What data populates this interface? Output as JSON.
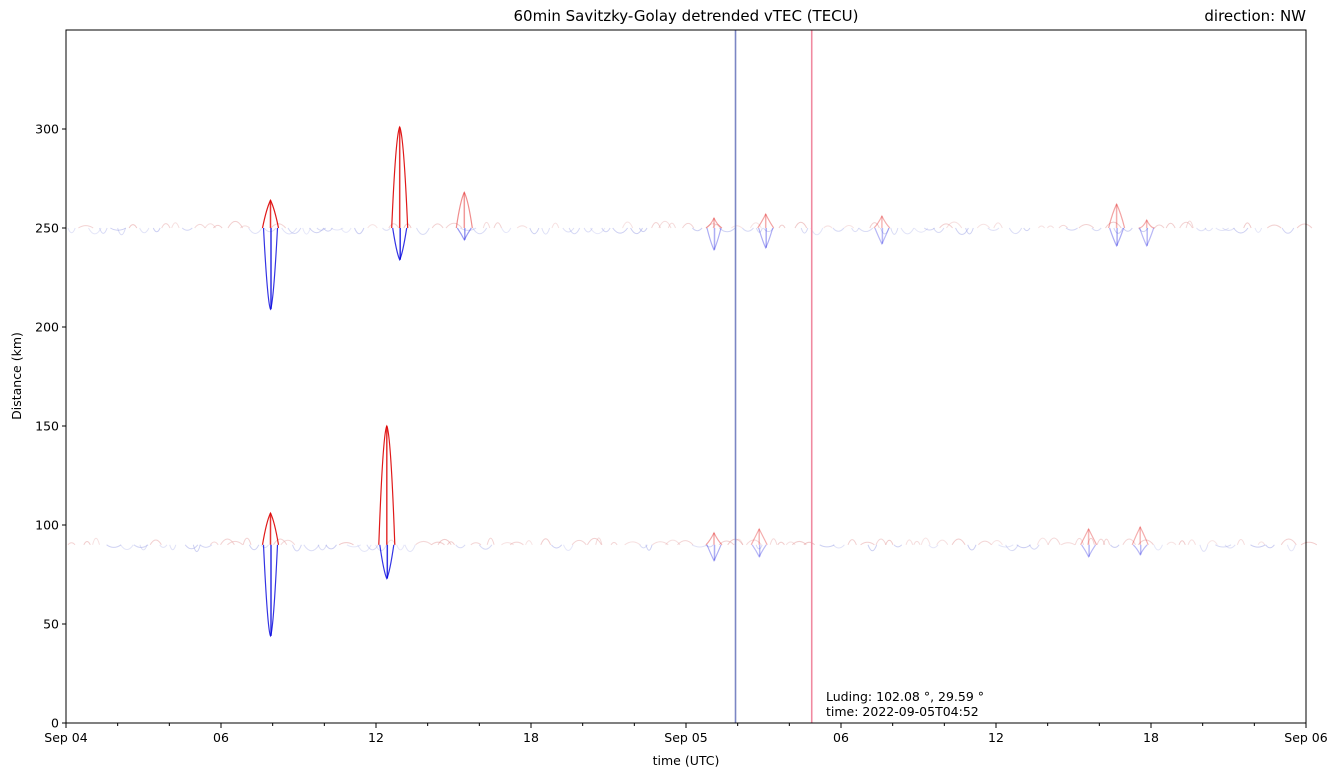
{
  "chart_data": {
    "type": "heatmap",
    "title": "60min Savitzky-Golay detrended vTEC (TECU)",
    "direction_label": "direction: NW",
    "xlabel": "time (UTC)",
    "ylabel": "Distance (km)",
    "x_range": [
      "2022-09-04T00:00",
      "2022-09-06T00:00"
    ],
    "ylim": [
      0,
      350
    ],
    "x_ticks": [
      {
        "t": "2022-09-04T00:00",
        "label": "Sep 04"
      },
      {
        "t": "2022-09-04T06:00",
        "label": "06"
      },
      {
        "t": "2022-09-04T12:00",
        "label": "12"
      },
      {
        "t": "2022-09-04T18:00",
        "label": "18"
      },
      {
        "t": "2022-09-05T00:00",
        "label": "Sep 05"
      },
      {
        "t": "2022-09-05T06:00",
        "label": "06"
      },
      {
        "t": "2022-09-05T12:00",
        "label": "12"
      },
      {
        "t": "2022-09-05T18:00",
        "label": "18"
      },
      {
        "t": "2022-09-06T00:00",
        "label": "Sep 06"
      }
    ],
    "y_ticks": [
      0,
      50,
      100,
      150,
      200,
      250,
      300
    ],
    "grid": false,
    "colormap": "bwr",
    "colors": {
      "positive": "#dd0000",
      "negative": "#0000dd",
      "marker_blue": "#7b86c4",
      "marker_red": "#f08aa0"
    },
    "vertical_lines": [
      {
        "t": "2022-09-05T01:55",
        "color": "#7b86c4"
      },
      {
        "t": "2022-09-05T04:52",
        "color": "#f08aa0"
      }
    ],
    "tracks": [
      {
        "baseline_km": 250,
        "features": [
          {
            "t": "2022-09-04T07:55",
            "peak_km": 264,
            "dip_km": 209,
            "intensity": 1.0
          },
          {
            "t": "2022-09-04T12:55",
            "peak_km": 301,
            "dip_km": 234,
            "intensity": 1.0
          },
          {
            "t": "2022-09-04T15:25",
            "peak_km": 268,
            "dip_km": 244,
            "intensity": 0.5
          },
          {
            "t": "2022-09-05T01:05",
            "peak_km": 255,
            "dip_km": 239,
            "intensity": 0.4
          },
          {
            "t": "2022-09-05T03:05",
            "peak_km": 257,
            "dip_km": 240,
            "intensity": 0.4
          },
          {
            "t": "2022-09-05T07:35",
            "peak_km": 256,
            "dip_km": 242,
            "intensity": 0.35
          },
          {
            "t": "2022-09-05T16:40",
            "peak_km": 262,
            "dip_km": 241,
            "intensity": 0.4
          },
          {
            "t": "2022-09-05T17:50",
            "peak_km": 254,
            "dip_km": 241,
            "intensity": 0.35
          }
        ]
      },
      {
        "baseline_km": 90,
        "features": [
          {
            "t": "2022-09-04T07:55",
            "peak_km": 106,
            "dip_km": 44,
            "intensity": 1.0
          },
          {
            "t": "2022-09-04T12:25",
            "peak_km": 150,
            "dip_km": 73,
            "intensity": 1.0
          },
          {
            "t": "2022-09-05T01:05",
            "peak_km": 96,
            "dip_km": 82,
            "intensity": 0.4
          },
          {
            "t": "2022-09-05T02:50",
            "peak_km": 98,
            "dip_km": 84,
            "intensity": 0.35
          },
          {
            "t": "2022-09-05T15:35",
            "peak_km": 98,
            "dip_km": 84,
            "intensity": 0.35
          },
          {
            "t": "2022-09-05T17:35",
            "peak_km": 99,
            "dip_km": 85,
            "intensity": 0.35
          }
        ]
      }
    ],
    "annotation": {
      "line1": "Luding: 102.08 °, 29.59 °",
      "line2": "time: 2022-09-05T04:52"
    }
  }
}
